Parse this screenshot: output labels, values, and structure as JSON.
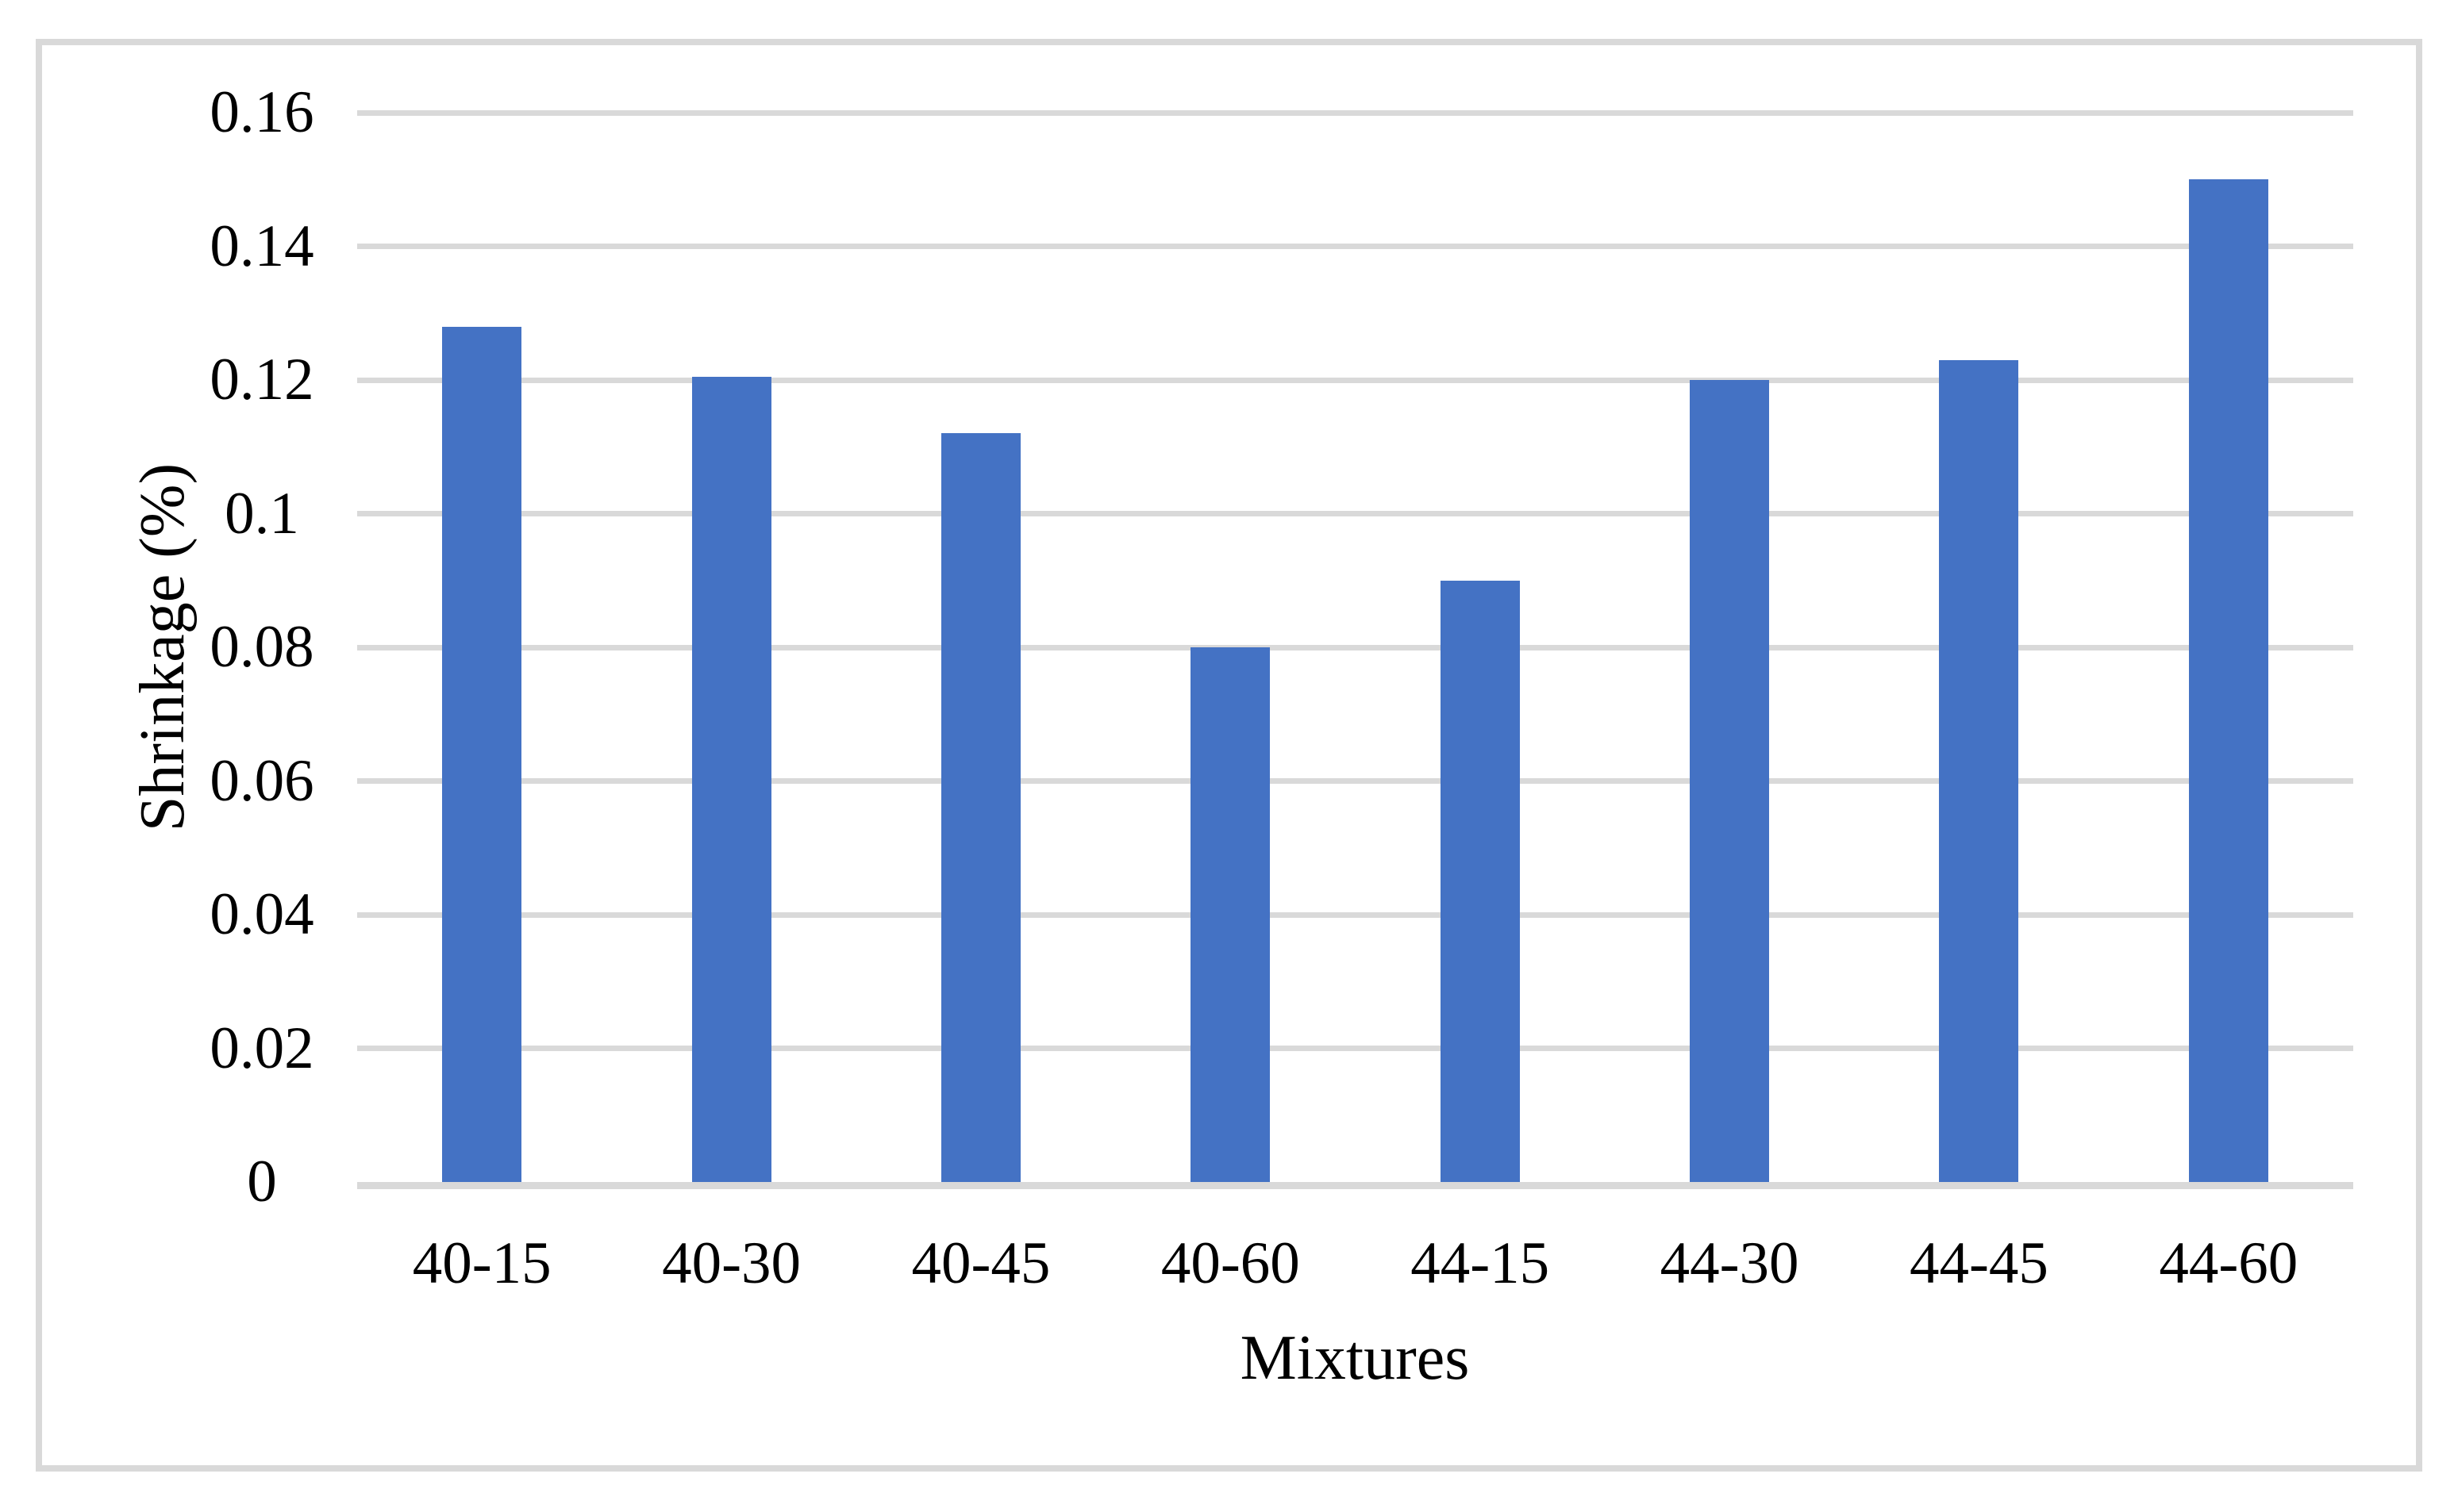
{
  "figure": {
    "type": "standalone chart figure",
    "border_color": "#d9d9d9",
    "background_color": "#ffffff"
  },
  "chart_data": {
    "type": "bar",
    "title": "",
    "xlabel": "Mixtures",
    "ylabel": "Shrinkage (%)",
    "categories": [
      "40-15",
      "40-30",
      "40-45",
      "40-60",
      "44-15",
      "44-30",
      "44-45",
      "44-60"
    ],
    "values": [
      0.128,
      0.1205,
      0.112,
      0.08,
      0.09,
      0.12,
      0.123,
      0.15
    ],
    "ylim": [
      0,
      0.16
    ],
    "y_tick_step": 0.02,
    "y_tick_labels": [
      "0",
      "0.02",
      "0.04",
      "0.06",
      "0.08",
      "0.1",
      "0.12",
      "0.14",
      "0.16"
    ],
    "grid": true,
    "legend": "none",
    "bar_color": "#4472c4",
    "gridline_color": "#d9d9d9",
    "axis_line_color": "#d9d9d9",
    "text_color": "#000000"
  }
}
